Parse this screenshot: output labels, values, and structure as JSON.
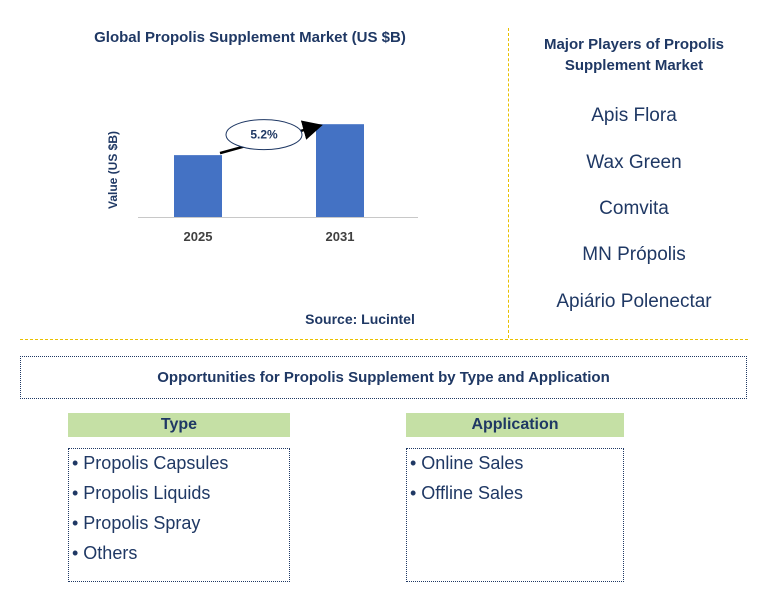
{
  "chart_title": "Global Propolis Supplement Market (US $B)",
  "source": "Source: Lucintel",
  "colors": {
    "bar": "#4472c4",
    "text": "#1f3864",
    "divider": "#e8c000",
    "header_bg": "#c5e0a5"
  },
  "chart_data": {
    "type": "bar",
    "title": "Global Propolis Supplement Market (US $B)",
    "categories": [
      "2025",
      "2031"
    ],
    "values": [
      1.0,
      1.5
    ],
    "ylabel": "Value (US $B)",
    "xlabel": "",
    "ylim": [
      0,
      1.6
    ],
    "annotation": "5.2%",
    "grid": false
  },
  "players": {
    "title": "Major Players of Propolis Supplement Market",
    "items": [
      "Apis Flora",
      "Wax Green",
      "Comvita",
      "MN Própolis",
      "Apiário Polenectar"
    ]
  },
  "opportunities_title": "Opportunities for Propolis Supplement by Type and Application",
  "type": {
    "header": "Type",
    "items": [
      "• Propolis Capsules",
      "• Propolis Liquids",
      "• Propolis Spray",
      "• Others"
    ]
  },
  "application": {
    "header": "Application",
    "items": [
      "• Online Sales",
      "• Offline Sales"
    ]
  }
}
